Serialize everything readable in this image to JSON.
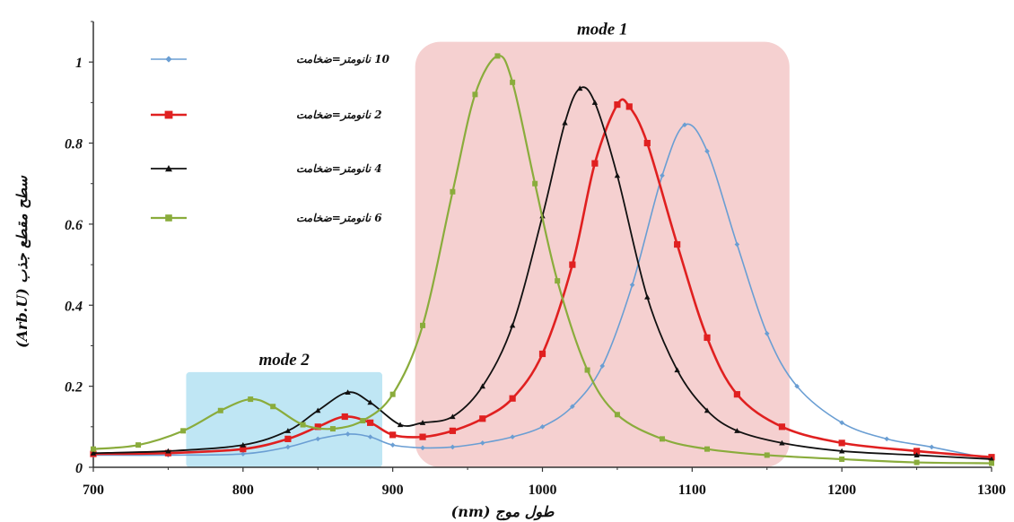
{
  "chart_data": {
    "type": "line",
    "xlabel": "طول موج (nm)",
    "ylabel": "سطح مقطع جذب (Arb.U)",
    "xlim": [
      700,
      1300
    ],
    "ylim": [
      0,
      1.1
    ],
    "xticks": [
      700,
      800,
      900,
      1000,
      1100,
      1200,
      1300
    ],
    "xtick_labels": [
      "700",
      "800",
      "900",
      "1000",
      "1100",
      "1200",
      "1300"
    ],
    "yticks": [
      0,
      0.2,
      0.4,
      0.6,
      0.8,
      1
    ],
    "ytick_labels": [
      "0",
      "0.2",
      "0.4",
      "0.6",
      "0.8",
      "1"
    ],
    "grid": false,
    "legend_position": "top-left",
    "regions": [
      {
        "label": "mode 1",
        "x_range": [
          915,
          1165
        ],
        "y_range": [
          0,
          1.05
        ],
        "color": "#f5d0d0"
      },
      {
        "label": "mode 2",
        "x_range": [
          762,
          893
        ],
        "y_range": [
          0,
          0.235
        ],
        "color": "#bfe6f4"
      }
    ],
    "series": [
      {
        "name": "10 نانومتر=ضخامت",
        "color": "#6a9ed3",
        "marker": "diamond",
        "x": [
          700,
          750,
          800,
          830,
          850,
          870,
          885,
          900,
          920,
          940,
          960,
          980,
          1000,
          1020,
          1040,
          1060,
          1080,
          1095,
          1110,
          1130,
          1150,
          1170,
          1200,
          1230,
          1260,
          1300
        ],
        "y": [
          0.03,
          0.03,
          0.033,
          0.05,
          0.07,
          0.082,
          0.075,
          0.055,
          0.048,
          0.05,
          0.06,
          0.075,
          0.1,
          0.15,
          0.25,
          0.45,
          0.72,
          0.845,
          0.78,
          0.55,
          0.33,
          0.2,
          0.11,
          0.07,
          0.05,
          0.02
        ]
      },
      {
        "name": "2 نانومتر=ضخامت",
        "color": "#e02020",
        "marker": "square",
        "x": [
          700,
          750,
          800,
          830,
          850,
          868,
          885,
          900,
          920,
          940,
          960,
          980,
          1000,
          1020,
          1035,
          1050,
          1058,
          1070,
          1090,
          1110,
          1130,
          1160,
          1200,
          1250,
          1300
        ],
        "y": [
          0.033,
          0.035,
          0.045,
          0.07,
          0.1,
          0.125,
          0.11,
          0.08,
          0.075,
          0.09,
          0.12,
          0.17,
          0.28,
          0.5,
          0.75,
          0.895,
          0.89,
          0.8,
          0.55,
          0.32,
          0.18,
          0.1,
          0.06,
          0.04,
          0.025
        ]
      },
      {
        "name": "4 نانومتر=ضخامت",
        "color": "#111111",
        "marker": "triangle",
        "x": [
          700,
          750,
          800,
          830,
          850,
          870,
          885,
          905,
          920,
          940,
          960,
          980,
          1000,
          1015,
          1025,
          1035,
          1050,
          1070,
          1090,
          1110,
          1130,
          1160,
          1200,
          1250,
          1300
        ],
        "y": [
          0.035,
          0.04,
          0.055,
          0.09,
          0.14,
          0.185,
          0.16,
          0.105,
          0.11,
          0.125,
          0.2,
          0.35,
          0.62,
          0.85,
          0.935,
          0.9,
          0.72,
          0.42,
          0.24,
          0.14,
          0.09,
          0.06,
          0.04,
          0.03,
          0.02
        ]
      },
      {
        "name": "6 نانومتر=ضخامت",
        "color": "#8aac3c",
        "marker": "square",
        "x": [
          700,
          730,
          760,
          785,
          805,
          820,
          840,
          860,
          880,
          900,
          920,
          940,
          955,
          970,
          980,
          995,
          1010,
          1030,
          1050,
          1080,
          1110,
          1150,
          1200,
          1250,
          1300
        ],
        "y": [
          0.045,
          0.055,
          0.09,
          0.14,
          0.168,
          0.15,
          0.105,
          0.095,
          0.115,
          0.18,
          0.35,
          0.68,
          0.92,
          1.015,
          0.95,
          0.7,
          0.46,
          0.24,
          0.13,
          0.07,
          0.045,
          0.03,
          0.02,
          0.012,
          0.01
        ]
      }
    ]
  }
}
